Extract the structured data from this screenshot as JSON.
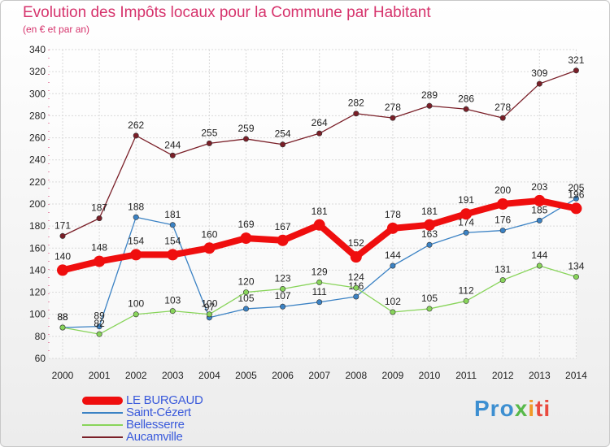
{
  "header": {
    "title": "Evolution des Impôts locaux pour la Commune par Habitant",
    "subtitle": "(en € et par an)"
  },
  "logo": {
    "text": "Proxiti",
    "parts": [
      "Pro",
      "x",
      "i",
      "ti"
    ]
  },
  "chart_data": {
    "type": "line",
    "x": [
      "2000",
      "2001",
      "2002",
      "2003",
      "2004",
      "2005",
      "2006",
      "2007",
      "2008",
      "2009",
      "2010",
      "2011",
      "2012",
      "2013",
      "2014"
    ],
    "ylim": [
      60,
      340
    ],
    "ytick_step": 20,
    "grid": true,
    "legend_position": "bottom-left",
    "series": [
      {
        "name": "Aucamville",
        "color": "#7a1f28",
        "values": [
          171,
          187,
          262,
          244,
          255,
          259,
          254,
          264,
          282,
          278,
          289,
          286,
          278,
          309,
          321
        ],
        "labels": [
          "171",
          "187",
          "262",
          "244",
          "255",
          "259",
          "254",
          "264",
          "282",
          "278",
          "289",
          "286",
          "278",
          "309",
          "321"
        ]
      },
      {
        "name": "Saint-Cézert",
        "color": "#3b82c4",
        "values": [
          88,
          89,
          188,
          181,
          97,
          105,
          107,
          111,
          116,
          144,
          163,
          174,
          176,
          185,
          205
        ],
        "labels": [
          "88",
          "89",
          "188",
          "181",
          "97",
          "105",
          "107",
          "111",
          "116",
          "144",
          "163",
          "174",
          "176",
          "185",
          "205"
        ]
      },
      {
        "name": "Bellesserre",
        "color": "#88d45a",
        "values": [
          88,
          82,
          100,
          103,
          100,
          120,
          123,
          129,
          124,
          102,
          105,
          112,
          131,
          144,
          134
        ],
        "labels": [
          "88",
          "82",
          "100",
          "103",
          "100",
          "120",
          "123",
          "129",
          "124",
          "102",
          "105",
          "112",
          "131",
          "144",
          "134"
        ]
      },
      {
        "name": "LE BURGAUD",
        "color": "#ef0e0e",
        "values": [
          140,
          148,
          154,
          154,
          160,
          169,
          167,
          181,
          152,
          178,
          181,
          191,
          200,
          203,
          196
        ],
        "labels": [
          "140",
          "148",
          "154",
          "154",
          "160",
          "169",
          "167",
          "181",
          "152",
          "178",
          "181",
          "191",
          "200",
          "203",
          "196"
        ]
      }
    ],
    "legend": [
      {
        "name": "LE BURGAUD",
        "color": "#ef0e0e"
      },
      {
        "name": "Saint-Cézert",
        "color": "#3b82c4"
      },
      {
        "name": "Bellesserre",
        "color": "#88d45a"
      },
      {
        "name": "Aucamville",
        "color": "#7a1f28"
      }
    ]
  }
}
